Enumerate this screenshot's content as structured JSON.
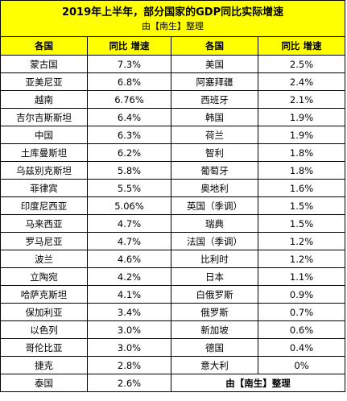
{
  "title": "2019年上半年，部分国家的GDP同比实际增速",
  "subtitle": "由【南生】整理",
  "headers": [
    "各国",
    "同比 增速",
    "各国",
    "同比 增速"
  ],
  "rows": [
    {
      "left_country": "蒙古国",
      "left_value": "7.3%",
      "right_country": "美国",
      "right_value": "2.5%"
    },
    {
      "left_country": "亚美尼亚",
      "left_value": "6.8%",
      "right_country": "阿塞拜疆",
      "right_value": "2.4%"
    },
    {
      "left_country": "越南",
      "left_value": "6.76%",
      "right_country": "西班牙",
      "right_value": "2.1%"
    },
    {
      "left_country": "吉尔吉斯斯坦",
      "left_value": "6.4%",
      "right_country": "韩国",
      "right_value": "1.9%"
    },
    {
      "left_country": "中国",
      "left_value": "6.3%",
      "right_country": "荷兰",
      "right_value": "1.9%"
    },
    {
      "left_country": "土库曼斯坦",
      "left_value": "6.2%",
      "right_country": "智利",
      "right_value": "1.8%"
    },
    {
      "left_country": "乌兹别克斯坦",
      "left_value": "5.8%",
      "right_country": "葡萄牙",
      "right_value": "1.8%"
    },
    {
      "left_country": "菲律宾",
      "left_value": "5.5%",
      "right_country": "奥地利",
      "right_value": "1.6%"
    },
    {
      "left_country": "印度尼西亚",
      "left_value": "5.06%",
      "right_country": "英国（季调）",
      "right_value": "1.5%"
    },
    {
      "left_country": "马来西亚",
      "left_value": "4.7%",
      "right_country": "瑞典",
      "right_value": "1.5%"
    },
    {
      "left_country": "罗马尼亚",
      "left_value": "4.7%",
      "right_country": "法国（季调）",
      "right_value": "1.2%"
    },
    {
      "left_country": "波兰",
      "left_value": "4.6%",
      "right_country": "比利时",
      "right_value": "1.2%"
    },
    {
      "left_country": "立陶宛",
      "left_value": "4.2%",
      "right_country": "日本",
      "right_value": "1.1%"
    },
    {
      "left_country": "哈萨克斯坦",
      "left_value": "4.1%",
      "right_country": "白俄罗斯",
      "right_value": "0.9%"
    },
    {
      "left_country": "保加利亚",
      "left_value": "3.4%",
      "right_country": "俄罗斯",
      "right_value": "0.7%"
    },
    {
      "left_country": "以色列",
      "left_value": "3.0%",
      "right_country": "新加坡",
      "right_value": "0.6%"
    },
    {
      "left_country": "哥伦比亚",
      "left_value": "3.0%",
      "right_country": "德国",
      "right_value": "0.4%"
    },
    {
      "left_country": "捷克",
      "left_value": "2.8%",
      "right_country": "意大利",
      "right_value": "0%"
    }
  ],
  "last_row": {
    "left_country": "泰国",
    "left_value": "2.6%",
    "note": "由【南生】整理"
  },
  "colors": {
    "header_fill": "#ffff00",
    "border": "#000000"
  }
}
